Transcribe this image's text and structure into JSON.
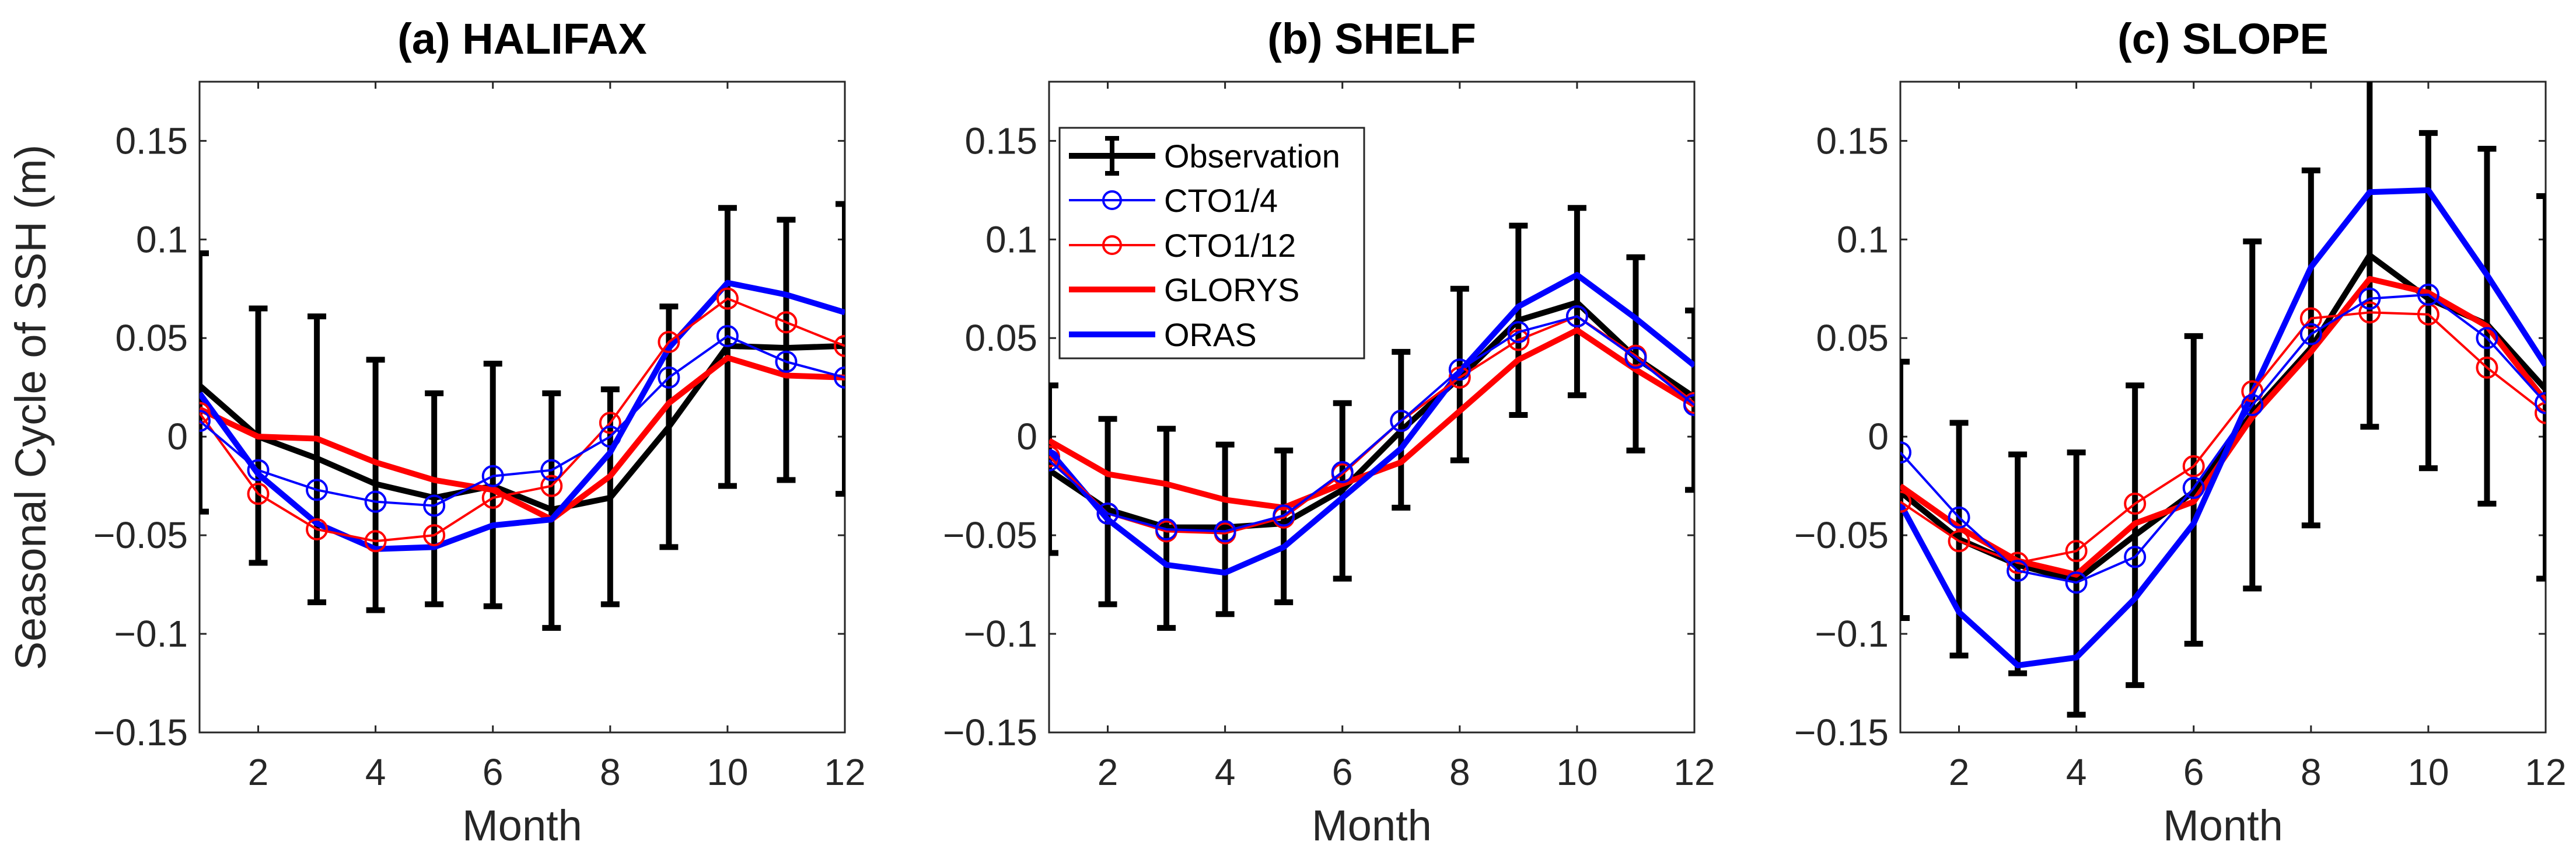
{
  "chart_data": {
    "type": "line",
    "ylabel": "Seasonal Cycle of SSH (m)",
    "xlabel": "Month",
    "xlim": [
      1,
      12
    ],
    "ylim": [
      -0.15,
      0.18
    ],
    "xticks": [
      2,
      4,
      6,
      8,
      10,
      12
    ],
    "yticks": [
      -0.15,
      -0.1,
      -0.05,
      0,
      0.05,
      0.1,
      0.15
    ],
    "ytick_labels": [
      "−0.15",
      "−0.1",
      "−0.05",
      "0",
      "0.05",
      "0.1",
      "0.15"
    ],
    "legend": {
      "placement": "top-left of panel (b)",
      "entries": [
        "Observation",
        "CTO1/4",
        "CTO1/12",
        "GLORYS",
        "ORAS"
      ]
    },
    "series_styles": {
      "Observation": {
        "color": "#000000",
        "style": "thick line with error bars"
      },
      "CTO1/4": {
        "color": "#0000ff",
        "style": "thin line with circle markers"
      },
      "CTO1/12": {
        "color": "#ff0000",
        "style": "thin line with circle markers"
      },
      "GLORYS": {
        "color": "#ff0000",
        "style": "thick line"
      },
      "ORAS": {
        "color": "#0000ff",
        "style": "thick line"
      }
    },
    "x": [
      1,
      2,
      3,
      4,
      5,
      6,
      7,
      8,
      9,
      10,
      11,
      12
    ],
    "panels": [
      {
        "title": "(a) HALIFAX",
        "series": [
          {
            "name": "Observation",
            "values": [
              0.026,
              0,
              -0.011,
              -0.024,
              -0.031,
              -0.025,
              -0.037,
              -0.031,
              0.005,
              0.046,
              0.045,
              0.046
            ],
            "err_upper": [
              0.093,
              0.065,
              0.061,
              0.039,
              0.022,
              0.037,
              0.022,
              0.024,
              0.066,
              0.116,
              0.11,
              0.118
            ],
            "err_lower": [
              -0.038,
              -0.064,
              -0.084,
              -0.088,
              -0.085,
              -0.086,
              -0.097,
              -0.085,
              -0.056,
              -0.025,
              -0.022,
              -0.029
            ]
          },
          {
            "name": "CTO1/4",
            "values": [
              0.008,
              -0.017,
              -0.027,
              -0.033,
              -0.035,
              -0.02,
              -0.017,
              0,
              0.03,
              0.051,
              0.038,
              0.03
            ]
          },
          {
            "name": "CTO1/12",
            "values": [
              0.012,
              -0.029,
              -0.047,
              -0.053,
              -0.05,
              -0.031,
              -0.025,
              0.007,
              0.048,
              0.07,
              0.058,
              0.046
            ]
          },
          {
            "name": "GLORYS",
            "values": [
              0.014,
              0,
              -0.001,
              -0.013,
              -0.022,
              -0.027,
              -0.042,
              -0.02,
              0.017,
              0.04,
              0.031,
              0.03
            ]
          },
          {
            "name": "ORAS",
            "values": [
              0.022,
              -0.019,
              -0.044,
              -0.057,
              -0.056,
              -0.045,
              -0.042,
              -0.008,
              0.045,
              0.078,
              0.072,
              0.063
            ]
          }
        ]
      },
      {
        "title": "(b) SHELF",
        "series": [
          {
            "name": "Observation",
            "values": [
              -0.017,
              -0.037,
              -0.046,
              -0.046,
              -0.044,
              -0.027,
              0.003,
              0.03,
              0.059,
              0.068,
              0.04,
              0.02
            ],
            "err_upper": [
              0.026,
              0.009,
              0.004,
              -0.004,
              -0.007,
              0.017,
              0.043,
              0.075,
              0.107,
              0.116,
              0.091,
              0.064
            ],
            "err_lower": [
              -0.059,
              -0.085,
              -0.097,
              -0.09,
              -0.084,
              -0.072,
              -0.036,
              -0.012,
              0.011,
              0.021,
              -0.007,
              -0.027
            ]
          },
          {
            "name": "CTO1/4",
            "values": [
              -0.012,
              -0.039,
              -0.047,
              -0.048,
              -0.04,
              -0.018,
              0.008,
              0.034,
              0.053,
              0.061,
              0.04,
              0.016
            ]
          },
          {
            "name": "CTO1/12",
            "values": [
              -0.01,
              -0.039,
              -0.048,
              -0.049,
              -0.041,
              -0.019,
              0.008,
              0.03,
              0.049,
              0.061,
              0.041,
              0.017
            ]
          },
          {
            "name": "GLORYS",
            "values": [
              -0.002,
              -0.019,
              -0.024,
              -0.032,
              -0.036,
              -0.024,
              -0.013,
              0.013,
              0.039,
              0.054,
              0.034,
              0.016
            ]
          },
          {
            "name": "ORAS",
            "values": [
              -0.007,
              -0.042,
              -0.065,
              -0.069,
              -0.056,
              -0.031,
              -0.006,
              0.033,
              0.066,
              0.082,
              0.06,
              0.036
            ]
          }
        ]
      },
      {
        "title": "(c) SLOPE",
        "series": [
          {
            "name": "Observation",
            "values": [
              -0.028,
              -0.052,
              -0.065,
              -0.073,
              -0.05,
              -0.028,
              0.012,
              0.045,
              0.092,
              0.07,
              0.057,
              0.024
            ],
            "err_upper": [
              0.038,
              0.007,
              -0.009,
              -0.008,
              0.026,
              0.051,
              0.099,
              0.135,
              0.185,
              0.154,
              0.146,
              0.122
            ],
            "err_lower": [
              -0.092,
              -0.111,
              -0.12,
              -0.141,
              -0.126,
              -0.105,
              -0.077,
              -0.045,
              0.005,
              -0.016,
              -0.034,
              -0.072
            ]
          },
          {
            "name": "CTO1/4",
            "values": [
              -0.008,
              -0.041,
              -0.068,
              -0.074,
              -0.061,
              -0.026,
              0.016,
              0.052,
              0.07,
              0.072,
              0.05,
              0.017
            ]
          },
          {
            "name": "CTO1/12",
            "values": [
              -0.033,
              -0.053,
              -0.064,
              -0.058,
              -0.034,
              -0.015,
              0.023,
              0.06,
              0.063,
              0.062,
              0.035,
              0.012
            ]
          },
          {
            "name": "GLORYS",
            "values": [
              -0.025,
              -0.046,
              -0.063,
              -0.07,
              -0.044,
              -0.033,
              0.01,
              0.043,
              0.08,
              0.073,
              0.056,
              0.018
            ]
          },
          {
            "name": "ORAS",
            "values": [
              -0.034,
              -0.089,
              -0.116,
              -0.112,
              -0.082,
              -0.044,
              0.022,
              0.086,
              0.124,
              0.125,
              0.082,
              0.036
            ]
          }
        ]
      }
    ]
  }
}
